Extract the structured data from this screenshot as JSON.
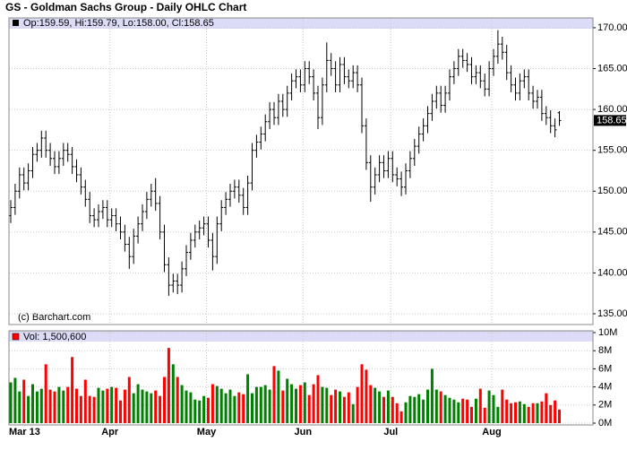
{
  "chart_data": {
    "type": "ohlc",
    "title": "GS - Goldman Sachs Group - Daily OHLC Chart",
    "legend_text": "Op:159.59, Hi:159.79, Lo:158.00, Cl:158.65",
    "copyright": "(c) Barchart.com",
    "color": "#000000",
    "grid": true,
    "categories": [
      "Mar 13",
      null,
      null,
      null,
      null,
      null,
      null,
      null,
      null,
      null,
      null,
      null,
      null,
      null,
      null,
      null,
      null,
      null,
      null,
      null,
      null,
      null,
      null,
      "Apr",
      null,
      null,
      null,
      null,
      null,
      null,
      null,
      null,
      null,
      null,
      null,
      null,
      null,
      null,
      null,
      null,
      null,
      null,
      null,
      null,
      null,
      "May",
      null,
      null,
      null,
      null,
      null,
      null,
      null,
      null,
      null,
      null,
      null,
      null,
      null,
      null,
      null,
      null,
      null,
      null,
      null,
      null,
      null,
      "Jun",
      null,
      null,
      null,
      null,
      null,
      null,
      null,
      null,
      null,
      null,
      null,
      null,
      null,
      null,
      null,
      null,
      null,
      null,
      null,
      "Jul",
      null,
      null,
      null,
      null,
      null,
      null,
      null,
      null,
      null,
      null,
      null,
      null,
      null,
      null,
      null,
      null,
      null,
      null,
      null,
      null,
      null,
      null,
      "Aug",
      null,
      null,
      null,
      null,
      null,
      null,
      null,
      null,
      null,
      null,
      null,
      null,
      null,
      null,
      null
    ],
    "open": [
      147,
      148,
      150,
      152,
      151,
      152.5,
      154.5,
      155,
      156.5,
      155,
      154,
      153,
      154,
      155,
      154.5,
      153,
      152,
      150.5,
      149,
      147,
      146.5,
      147.5,
      148,
      146.5,
      147,
      146,
      145,
      143.5,
      142,
      144.5,
      146,
      147.5,
      149,
      150,
      148.5,
      145,
      141,
      138.5,
      139,
      138.5,
      140.5,
      142.5,
      144,
      145,
      145.5,
      146,
      144,
      142,
      146,
      148,
      149,
      150,
      150.5,
      149.5,
      148,
      151,
      155,
      156,
      157,
      158.5,
      160,
      159,
      161,
      160,
      162,
      163.5,
      164,
      163,
      165,
      164,
      162,
      159,
      163,
      166,
      165,
      163,
      165.5,
      164,
      163.5,
      164.5,
      163,
      158,
      153.5,
      150.5,
      152,
      153.5,
      152.5,
      154,
      152,
      151.5,
      150.5,
      152.5,
      154,
      155.5,
      157,
      158,
      159.5,
      161,
      162,
      160.5,
      162,
      164,
      165,
      166.5,
      166,
      165.5,
      164,
      164.5,
      163.5,
      162.5,
      165,
      166.5,
      168,
      167,
      164.5,
      163,
      162,
      163.5,
      164,
      162,
      161,
      161.5,
      159.5,
      159,
      158,
      159.59
    ],
    "high": [
      148.9,
      150.9,
      152.9,
      152.9,
      153.4,
      155.4,
      155.9,
      157.4,
      157.4,
      155.9,
      154.9,
      154.9,
      155.9,
      155.9,
      155.4,
      153.9,
      152.9,
      151.4,
      149.9,
      147.9,
      148.4,
      148.9,
      148.9,
      147.9,
      147.9,
      146.9,
      145.9,
      144.4,
      145.4,
      146.9,
      148.4,
      149.9,
      150.9,
      151.6,
      149.4,
      145.9,
      141.9,
      139.9,
      139.9,
      141.4,
      143.4,
      144.9,
      145.9,
      146.4,
      146.9,
      146.9,
      144.9,
      146.9,
      148.9,
      149.9,
      150.9,
      151.4,
      151.4,
      150.4,
      151.9,
      155.9,
      156.9,
      157.9,
      159.4,
      160.9,
      160.9,
      161.9,
      161.9,
      162.9,
      164.4,
      164.9,
      164.9,
      165.9,
      165.9,
      164.9,
      162.9,
      163.9,
      168.2,
      166.9,
      165.9,
      166.4,
      166.4,
      164.9,
      165.4,
      165.4,
      163.9,
      158.9,
      154.4,
      152.9,
      154.4,
      154.4,
      154.9,
      154.9,
      152.9,
      152.4,
      153.4,
      154.9,
      156.4,
      157.9,
      158.9,
      160.4,
      161.9,
      162.9,
      162.9,
      162.9,
      164.9,
      165.9,
      167.4,
      167.4,
      166.9,
      166.4,
      165.4,
      165.4,
      164.4,
      165.9,
      167.4,
      169.7,
      168.9,
      167.9,
      165.4,
      163.9,
      164.4,
      164.9,
      164.9,
      162.9,
      162.4,
      162.4,
      160.4,
      159.9,
      158.9,
      159.79
    ],
    "low": [
      146.1,
      147.1,
      149.1,
      150.1,
      150.1,
      151.6,
      153.6,
      154.1,
      154.1,
      153.1,
      152.1,
      152.1,
      153.1,
      153.6,
      152.1,
      151.1,
      149.6,
      148.1,
      146.1,
      145.6,
      145.6,
      146.6,
      145.6,
      145.6,
      145.1,
      144.1,
      142.6,
      140.5,
      141.1,
      143.6,
      145.1,
      146.6,
      148.1,
      147.6,
      144.1,
      140.1,
      137.2,
      137.6,
      137.4,
      137.6,
      139.6,
      141.6,
      143.1,
      144.1,
      144.6,
      143.1,
      140.3,
      141.1,
      145.1,
      147.1,
      148.1,
      149.1,
      148.6,
      147.1,
      147.1,
      150.1,
      154.1,
      155.1,
      156.1,
      157.6,
      158.1,
      158.1,
      159.1,
      159.1,
      161.1,
      162.6,
      162.1,
      162.1,
      163.1,
      161.1,
      157.6,
      158.1,
      162.1,
      164.1,
      162.1,
      162.1,
      163.1,
      162.6,
      162.6,
      162.1,
      157.1,
      152.6,
      148.7,
      149.6,
      151.1,
      151.6,
      151.6,
      151.1,
      150.6,
      149.4,
      149.6,
      151.6,
      153.1,
      154.6,
      156.1,
      157.1,
      158.6,
      160.1,
      159.6,
      159.6,
      161.1,
      163.1,
      164.1,
      165.1,
      164.6,
      163.1,
      163.1,
      162.6,
      161.6,
      161.6,
      164.1,
      165.6,
      166.1,
      163.6,
      162.1,
      161.1,
      161.1,
      162.6,
      161.1,
      160.1,
      160.1,
      158.6,
      158.1,
      157.1,
      156.6,
      158.0
    ],
    "close": [
      148,
      150,
      152,
      151,
      152.5,
      154.5,
      155,
      156.5,
      155,
      154,
      153,
      154,
      155,
      154.5,
      153,
      152,
      150.5,
      149,
      147,
      146.5,
      147.5,
      148,
      146.5,
      147,
      146,
      145,
      143.5,
      142,
      144.5,
      146,
      147.5,
      149,
      150,
      148.5,
      145,
      141,
      138.5,
      139,
      138.5,
      140.5,
      142.5,
      144,
      145,
      145.5,
      146,
      144,
      142,
      146,
      148,
      149,
      150,
      150.5,
      149.5,
      148,
      151,
      155,
      156,
      157,
      158.5,
      160,
      159,
      161,
      160,
      162,
      163.5,
      164,
      163,
      165,
      164,
      162,
      159,
      163,
      166,
      165,
      163,
      165.5,
      164,
      163.5,
      164.5,
      163,
      158,
      153.5,
      150.5,
      152,
      153.5,
      152.5,
      154,
      152,
      151.5,
      150.5,
      152.5,
      154,
      155.5,
      157,
      158,
      159.5,
      161,
      162,
      160.5,
      162,
      164,
      165,
      166.5,
      166,
      165.5,
      164,
      164.5,
      163.5,
      162.5,
      165,
      166.5,
      168,
      167,
      164.5,
      163,
      162,
      163.5,
      164,
      162,
      161,
      161.5,
      159.5,
      159,
      158,
      157.5,
      158.65
    ],
    "ylim": [
      133.9,
      171.2
    ],
    "yticks": [
      {
        "value": 135,
        "label": "135.00"
      },
      {
        "value": 140,
        "label": "140.00"
      },
      {
        "value": 145,
        "label": "145.00"
      },
      {
        "value": 150,
        "label": "150.00"
      },
      {
        "value": 155,
        "label": "155.00"
      },
      {
        "value": 160,
        "label": "160.00"
      },
      {
        "value": 165,
        "label": "165.00"
      },
      {
        "value": 170,
        "label": "170.00"
      }
    ],
    "volume": {
      "label": "Vol: 1,500,600",
      "up_color": "#008000",
      "down_color": "#ff0000",
      "values": [
        4500000,
        5000000,
        3500000,
        4800000,
        3000000,
        4300000,
        3500000,
        3800000,
        6500000,
        3700000,
        3500000,
        4000000,
        3600000,
        4000000,
        7300000,
        3800000,
        3000000,
        4800000,
        3000000,
        2900000,
        3900000,
        3600000,
        3800000,
        4000000,
        3900000,
        2500000,
        3700000,
        5100000,
        3300000,
        4300000,
        3700000,
        3500000,
        3300000,
        3600000,
        3000000,
        5100000,
        8300000,
        6500000,
        5100000,
        4200000,
        3600000,
        3400000,
        2600000,
        2500000,
        3000000,
        2800000,
        4300000,
        4100000,
        3800000,
        3300000,
        3700000,
        3000000,
        3400000,
        3200000,
        5400000,
        3300000,
        4000000,
        4000000,
        4200000,
        3700000,
        6300000,
        5800000,
        3600000,
        4900000,
        4300000,
        3800000,
        4200000,
        4500000,
        3100000,
        4300000,
        5300000,
        4000000,
        3900000,
        3100000,
        3700000,
        3500000,
        2900000,
        3400000,
        2100000,
        4000000,
        6500000,
        5900000,
        4200000,
        3900000,
        3500000,
        2900000,
        3600000,
        2900000,
        2200000,
        1300000,
        2300000,
        3000000,
        2900000,
        3200000,
        2600000,
        3700000,
        6000000,
        3700000,
        3500000,
        3100000,
        2800000,
        2600000,
        2300000,
        2700000,
        2600000,
        1800000,
        2700000,
        3800000,
        1700000,
        3600000,
        3100000,
        1800000,
        3700000,
        2600000,
        2200000,
        2300000,
        2400000,
        2100000,
        1800000,
        2200000,
        2200000,
        2400000,
        3300000,
        2000000,
        2500000,
        1500600
      ],
      "ylim": [
        0,
        10100000
      ],
      "yticks": [
        {
          "value": 0,
          "label": "0M"
        },
        {
          "value": 2000000,
          "label": "2M"
        },
        {
          "value": 4000000,
          "label": "4M"
        },
        {
          "value": 6000000,
          "label": "6M"
        },
        {
          "value": 8000000,
          "label": "8M"
        },
        {
          "value": 10000000,
          "label": "10M"
        }
      ]
    }
  }
}
